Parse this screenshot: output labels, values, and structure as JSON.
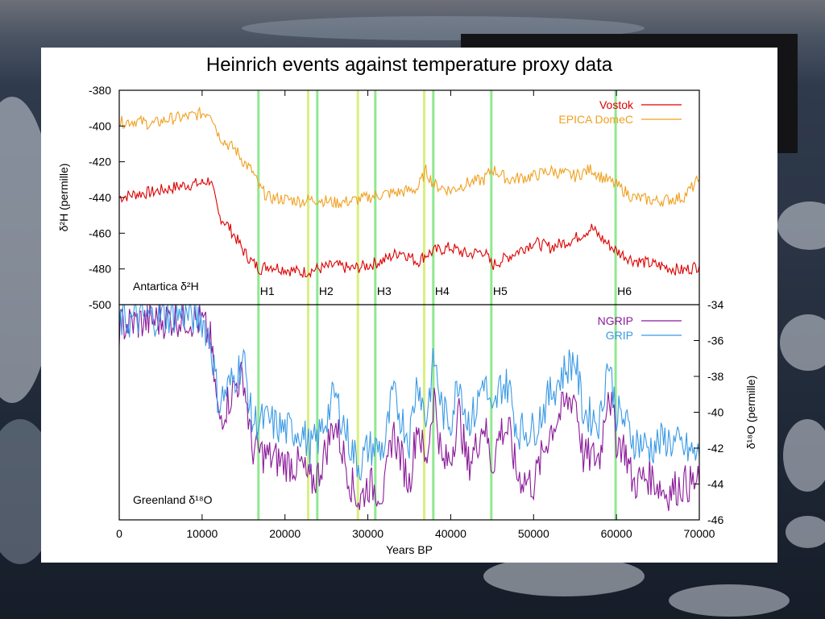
{
  "chart_data": {
    "type": "line",
    "title": "Heinrich events against temperature proxy data",
    "xlabel": "Years BP",
    "xlim": [
      0,
      70000
    ],
    "x_ticks": [
      "0",
      "10000",
      "20000",
      "30000",
      "40000",
      "50000",
      "60000",
      "70000"
    ],
    "panels": [
      {
        "region_label": "Antartica δ²H",
        "ylabel": "δ²H (permille)",
        "ylim": [
          -500,
          -380
        ],
        "y_ticks": [
          "-380",
          "-400",
          "-420",
          "-440",
          "-460",
          "-480",
          "-500"
        ],
        "series": [
          {
            "name": "Vostok",
            "color": "#dd0000",
            "x": [
              0,
              2000,
              4000,
              6000,
              8000,
              10000,
              11000,
              12000,
              13000,
              14000,
              15000,
              16000,
              17000,
              18000,
              20000,
              22000,
              24000,
              26000,
              28000,
              30000,
              32000,
              34000,
              36000,
              37000,
              38000,
              40000,
              42000,
              44000,
              45000,
              47000,
              50000,
              52000,
              55000,
              57000,
              58000,
              60000,
              62000,
              65000,
              68000,
              70000
            ],
            "y": [
              -440,
              -438,
              -437,
              -435,
              -433,
              -432,
              -430,
              -450,
              -455,
              -462,
              -470,
              -476,
              -480,
              -478,
              -480,
              -482,
              -480,
              -478,
              -480,
              -478,
              -475,
              -470,
              -476,
              -472,
              -470,
              -468,
              -472,
              -470,
              -478,
              -473,
              -465,
              -468,
              -463,
              -457,
              -462,
              -470,
              -475,
              -478,
              -481,
              -478
            ]
          },
          {
            "name": "EPICA DomeC",
            "color": "#f0a020",
            "x": [
              0,
              2000,
              4000,
              6000,
              8000,
              10000,
              11000,
              12000,
              13000,
              14000,
              15000,
              16000,
              17000,
              18000,
              20000,
              22000,
              24000,
              26000,
              28000,
              30000,
              32000,
              34000,
              36000,
              37000,
              38000,
              40000,
              42000,
              44000,
              45000,
              47000,
              50000,
              52000,
              55000,
              57000,
              58000,
              60000,
              62000,
              65000,
              68000,
              70000
            ],
            "y": [
              -398,
              -397,
              -399,
              -396,
              -395,
              -393,
              -392,
              -405,
              -410,
              -413,
              -420,
              -425,
              -435,
              -440,
              -441,
              -442,
              -441,
              -443,
              -442,
              -440,
              -438,
              -437,
              -435,
              -425,
              -433,
              -436,
              -432,
              -430,
              -424,
              -430,
              -428,
              -425,
              -428,
              -424,
              -428,
              -433,
              -440,
              -442,
              -440,
              -430
            ]
          }
        ]
      },
      {
        "region_label": "Greenland δ¹⁸O",
        "ylabel": "δ¹⁸O (permille)",
        "ylim": [
          -46,
          -34
        ],
        "y_ticks": [
          "-34",
          "-36",
          "-38",
          "-40",
          "-42",
          "-44",
          "-46"
        ],
        "series": [
          {
            "name": "NGRIP",
            "color": "#8b1a9a",
            "x": [
              0,
              2000,
              4000,
              6000,
              8000,
              10000,
              11000,
              12000,
              14000,
              15000,
              16000,
              18000,
              20000,
              22000,
              23000,
              24000,
              26000,
              28000,
              29000,
              30000,
              32000,
              33000,
              35000,
              36000,
              37000,
              38000,
              39000,
              40000,
              41000,
              42000,
              43000,
              44000,
              45000,
              46000,
              47000,
              48000,
              50000,
              52000,
              54000,
              55000,
              56000,
              58000,
              59000,
              60000,
              61000,
              62000,
              64000,
              66000,
              68000,
              70000
            ],
            "y": [
              -35.2,
              -35.0,
              -34.9,
              -34.8,
              -34.7,
              -35.0,
              -36.0,
              -40.5,
              -38.5,
              -38.0,
              -42.0,
              -42.5,
              -42.8,
              -43.0,
              -44.0,
              -43.5,
              -40.5,
              -44.0,
              -45.0,
              -44.0,
              -44.5,
              -41.0,
              -44.0,
              -40.5,
              -43.0,
              -39.0,
              -43.0,
              -42.5,
              -40.0,
              -43.0,
              -42.0,
              -40.5,
              -43.0,
              -41.0,
              -41.0,
              -43.5,
              -44.0,
              -41.0,
              -39.5,
              -39.0,
              -42.5,
              -42.5,
              -38.5,
              -41.5,
              -42.0,
              -44.0,
              -43.5,
              -44.5,
              -44.0,
              -44.0
            ]
          },
          {
            "name": "GRIP",
            "color": "#3a9ae6",
            "x": [
              0,
              2000,
              4000,
              6000,
              8000,
              10000,
              11000,
              12000,
              14000,
              15000,
              16000,
              18000,
              20000,
              22000,
              23000,
              24000,
              26000,
              28000,
              29000,
              30000,
              32000,
              33000,
              35000,
              36000,
              37000,
              38000,
              39000,
              40000,
              41000,
              42000,
              43000,
              44000,
              45000,
              46000,
              47000,
              48000,
              50000,
              52000,
              54000,
              55000,
              56000,
              58000,
              59000,
              60000,
              61000,
              62000,
              64000,
              66000,
              68000,
              70000
            ],
            "y": [
              -35.0,
              -34.8,
              -34.7,
              -34.6,
              -34.5,
              -34.8,
              -36.0,
              -39.5,
              -38.0,
              -37.0,
              -40.5,
              -40.5,
              -41.0,
              -41.0,
              -42.0,
              -41.5,
              -39.0,
              -42.0,
              -43.0,
              -42.0,
              -42.0,
              -39.0,
              -41.5,
              -38.0,
              -40.5,
              -37.0,
              -40.0,
              -40.5,
              -38.0,
              -40.5,
              -40.0,
              -38.0,
              -40.5,
              -38.5,
              -38.5,
              -41.0,
              -41.0,
              -39.0,
              -37.5,
              -37.0,
              -40.0,
              -40.5,
              -37.0,
              -40.0,
              -40.5,
              -41.5,
              -42.0,
              -41.5,
              -42.0,
              -42.5
            ]
          }
        ]
      }
    ],
    "heinrich_events": [
      {
        "label": "H1",
        "x": 16800
      },
      {
        "label": "H2",
        "x": 23900
      },
      {
        "label": "H3",
        "x": 30900
      },
      {
        "label": "H4",
        "x": 37900
      },
      {
        "label": "H5",
        "x": 44900
      },
      {
        "label": "H6",
        "x": 59900
      }
    ],
    "other_event_lines": [
      22800,
      28800,
      36800
    ],
    "event_line_color": "#90e890",
    "other_event_line_color": "#d8f080",
    "grid": false,
    "legend_position": "top-right"
  }
}
